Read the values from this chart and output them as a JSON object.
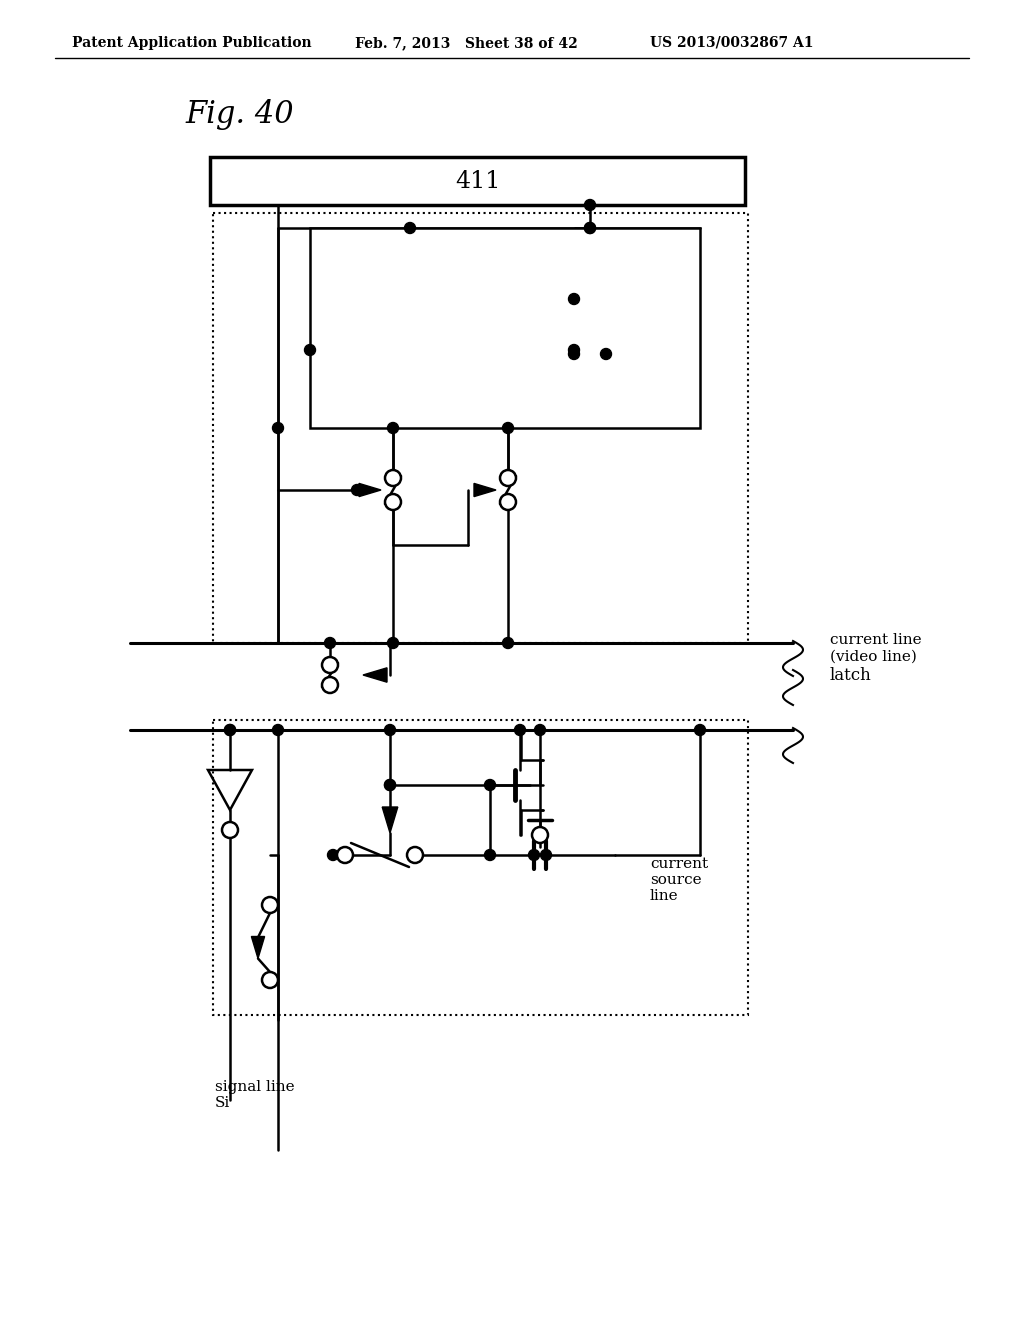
{
  "header_left": "Patent Application Publication",
  "header_mid": "Feb. 7, 2013   Sheet 38 of 42",
  "header_right": "US 2013/0032867 A1",
  "fig_title": "Fig. 40",
  "label_411": "411",
  "label_current_line": "current line\n(video line)",
  "label_latch": "latch",
  "label_current_source": "current\nsource\nline",
  "label_signal_line": "signal line\nSi",
  "bg": "#ffffff",
  "fg": "#000000"
}
